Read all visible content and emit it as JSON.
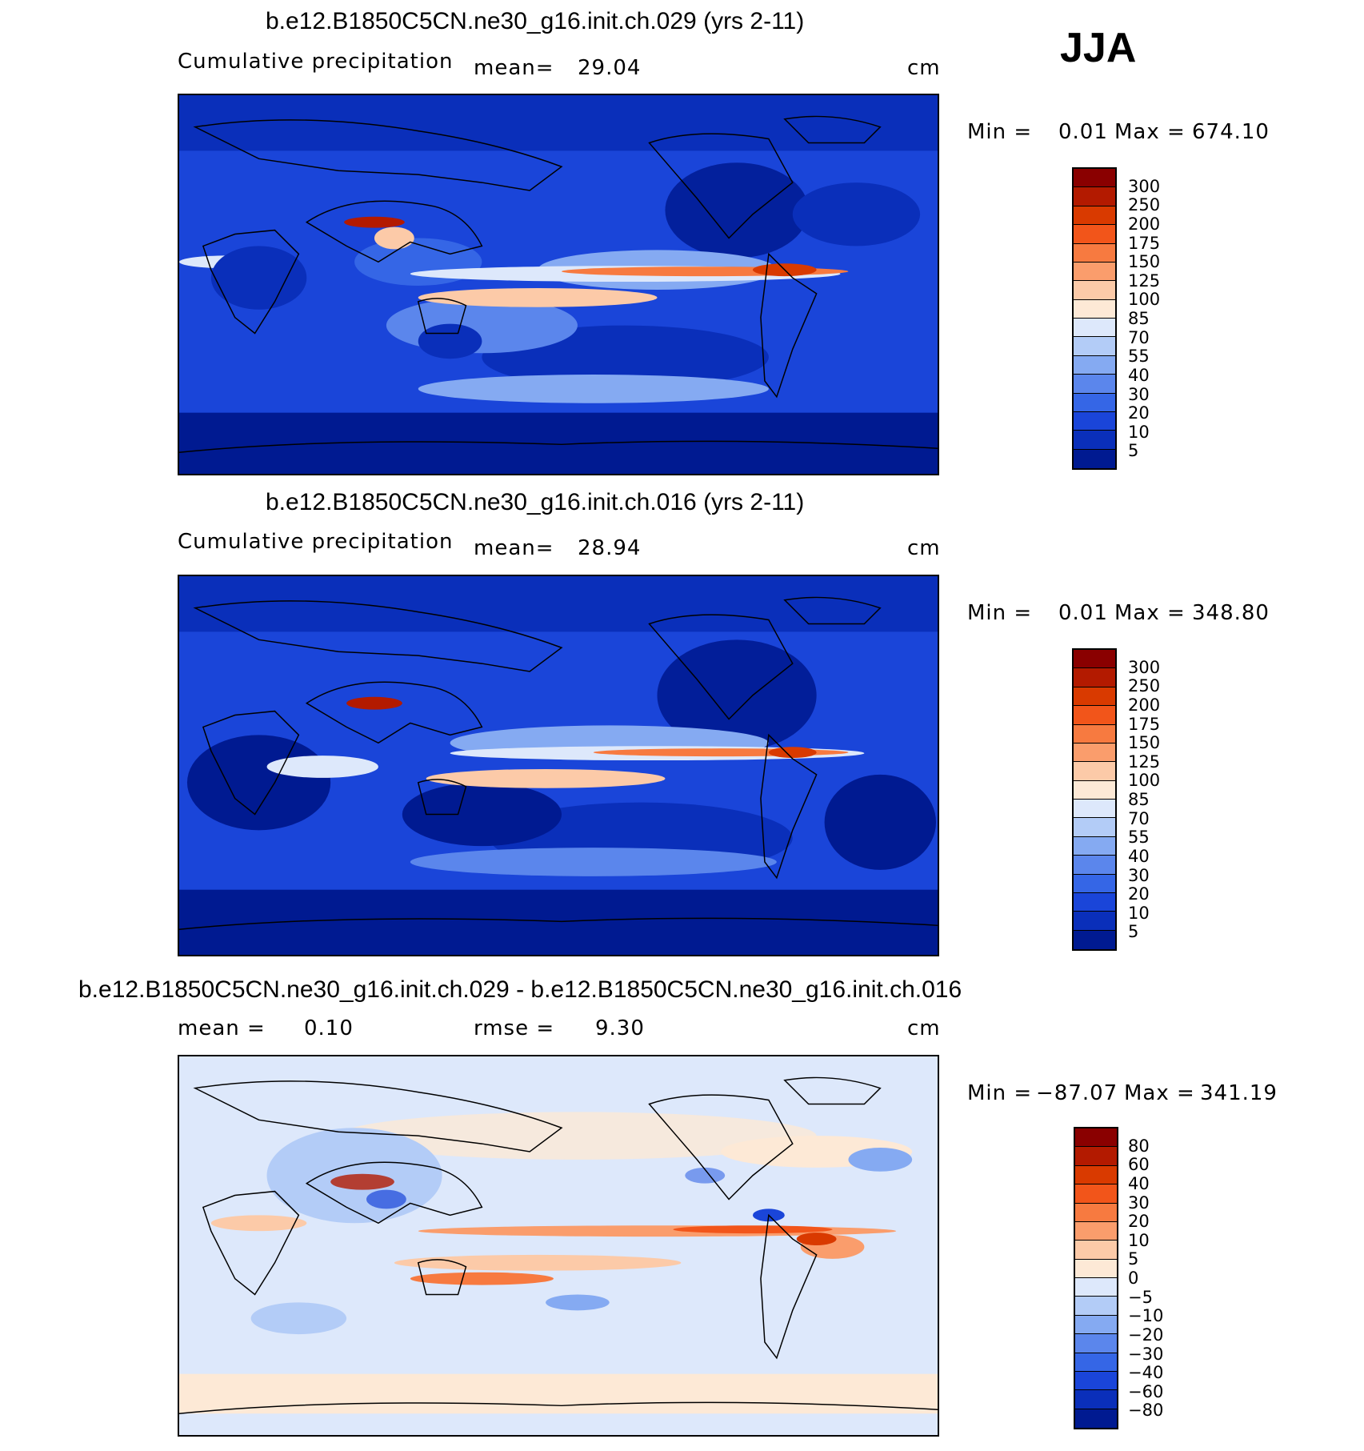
{
  "season": "JJA",
  "panels": [
    {
      "title": "b.e12.B1850C5CN.ne30_g16.init.ch.029 (yrs 2-11)",
      "left_label": "Cumulative precipitation",
      "mean_text": "mean=",
      "mean_value": "29.04",
      "unit": "cm",
      "min_label": "Min =",
      "min_value": "0.01",
      "max_label": "Max =",
      "max_value": "674.10",
      "colorbar": {
        "colors": [
          "#8a0000",
          "#b31a00",
          "#d93a00",
          "#f2551a",
          "#f77a40",
          "#fa9d6c",
          "#fccaa8",
          "#fde9d6",
          "#dde8fb",
          "#b3ccf7",
          "#85aaf2",
          "#5b86ec",
          "#3566e6",
          "#1a45d9",
          "#0a2fba",
          "#001a91"
        ],
        "ticks": [
          "300",
          "250",
          "200",
          "175",
          "150",
          "125",
          "100",
          "85",
          "70",
          "55",
          "40",
          "30",
          "20",
          "10",
          "5"
        ]
      }
    },
    {
      "title": "b.e12.B1850C5CN.ne30_g16.init.ch.016 (yrs 2-11)",
      "left_label": "Cumulative precipitation",
      "mean_text": "mean=",
      "mean_value": "28.94",
      "unit": "cm",
      "min_label": "Min =",
      "min_value": "0.01",
      "max_label": "Max =",
      "max_value": "348.80",
      "colorbar": {
        "colors": [
          "#8a0000",
          "#b31a00",
          "#d93a00",
          "#f2551a",
          "#f77a40",
          "#fa9d6c",
          "#fccaa8",
          "#fde9d6",
          "#dde8fb",
          "#b3ccf7",
          "#85aaf2",
          "#5b86ec",
          "#3566e6",
          "#1a45d9",
          "#0a2fba",
          "#001a91"
        ],
        "ticks": [
          "300",
          "250",
          "200",
          "175",
          "150",
          "125",
          "100",
          "85",
          "70",
          "55",
          "40",
          "30",
          "20",
          "10",
          "5"
        ]
      }
    },
    {
      "title": "b.e12.B1850C5CN.ne30_g16.init.ch.029 - b.e12.B1850C5CN.ne30_g16.init.ch.016",
      "mean_text": "mean =",
      "mean_value": "0.10",
      "rmse_text": "rmse =",
      "rmse_value": "9.30",
      "unit": "cm",
      "min_label": "Min =",
      "min_value": "−87.07",
      "max_label": "Max =",
      "max_value": "341.19",
      "colorbar": {
        "colors": [
          "#8a0000",
          "#b31a00",
          "#d93a00",
          "#f2551a",
          "#f77a40",
          "#fa9d6c",
          "#fccaa8",
          "#fde9d6",
          "#dde8fb",
          "#b3ccf7",
          "#85aaf2",
          "#5b86ec",
          "#3566e6",
          "#1a45d9",
          "#0a2fba",
          "#001a91"
        ],
        "ticks": [
          "80",
          "60",
          "40",
          "30",
          "20",
          "10",
          "5",
          "0",
          "−5",
          "−10",
          "−20",
          "−30",
          "−40",
          "−60",
          "−80"
        ]
      }
    }
  ]
}
